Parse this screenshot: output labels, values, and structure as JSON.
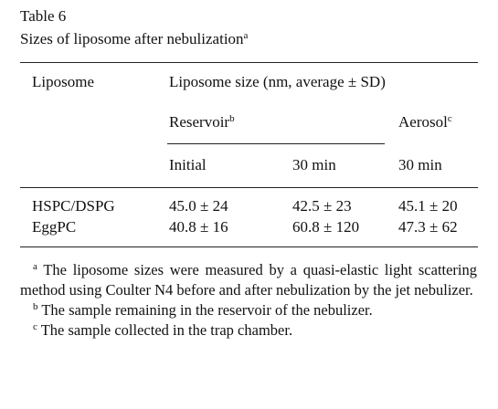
{
  "table": {
    "label": "Table 6",
    "title": "Sizes of liposome after nebulization",
    "title_note": "a",
    "header": {
      "first": "Liposome",
      "group": "Liposome size (nm, average ± SD)",
      "reservoir": "Reservoir",
      "reservoir_note": "b",
      "aerosol": "Aerosol",
      "aerosol_note": "c",
      "columns": [
        "Initial",
        "30 min",
        "30 min"
      ]
    },
    "rows": [
      [
        "HSPC/DSPG",
        "45.0 ± 24",
        "42.5 ± 23",
        "45.1 ± 20"
      ],
      [
        "EggPC",
        "40.8 ± 16",
        "60.8 ± 120",
        "47.3 ± 62"
      ]
    ],
    "footnotes": [
      {
        "mark": "a",
        "text": "The liposome sizes were measured by a quasi-elastic light scattering method using Coulter N4 before and after nebulization by the jet nebulizer."
      },
      {
        "mark": "b",
        "text": "The sample remaining in the reservoir of the nebulizer."
      },
      {
        "mark": "c",
        "text": "The sample collected in the trap chamber."
      }
    ]
  }
}
